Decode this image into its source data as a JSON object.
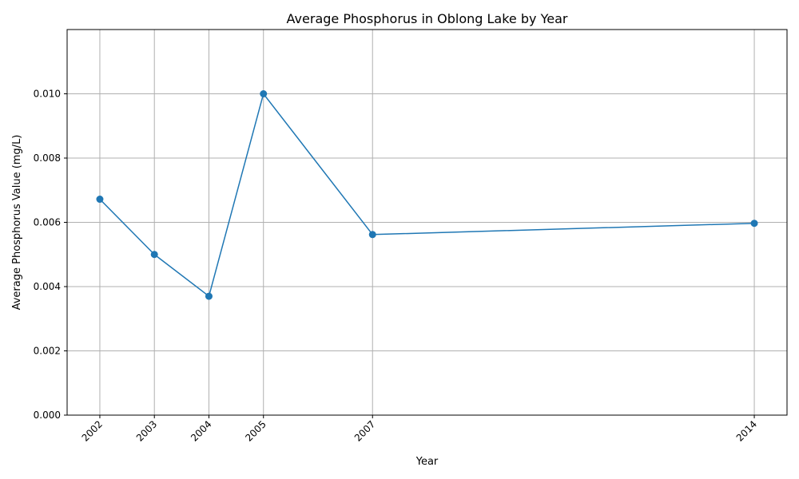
{
  "chart_data": {
    "type": "line",
    "title": "Average Phosphorus in Oblong Lake by Year",
    "xlabel": "Year",
    "ylabel": "Average Phosphorus Value (mg/L)",
    "x": [
      2002,
      2003,
      2004,
      2005,
      2007,
      2014
    ],
    "x_tick_labels": [
      "2002",
      "2003",
      "2004",
      "2005",
      "2007",
      "2014"
    ],
    "y": [
      0.00672,
      0.005,
      0.0037,
      0.01,
      0.00562,
      0.00597
    ],
    "y_ticks": [
      0,
      0.002,
      0.004,
      0.006,
      0.008,
      0.01
    ],
    "y_tick_labels": [
      "0.000",
      "0.002",
      "0.004",
      "0.006",
      "0.008",
      "0.010"
    ],
    "xlim": [
      2001.4,
      2014.6
    ],
    "ylim": [
      0,
      0.012
    ],
    "grid": true,
    "marker": "circle",
    "color": "#1f77b4"
  }
}
